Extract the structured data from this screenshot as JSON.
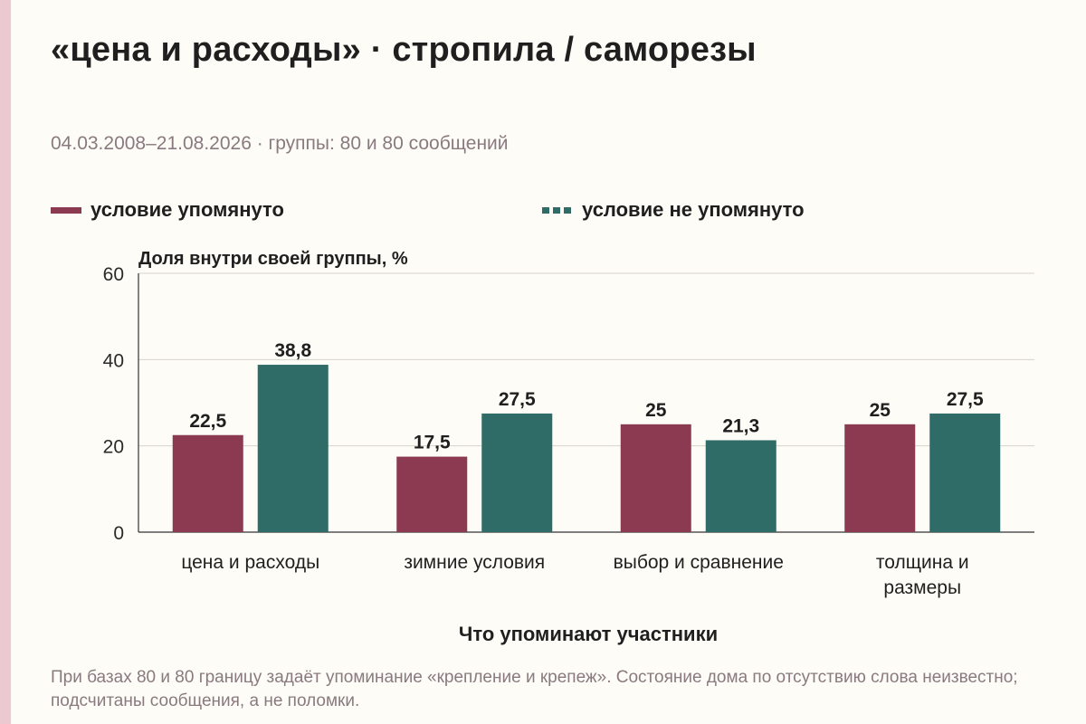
{
  "header": {
    "title": "«цена и расходы» · стропила / саморезы",
    "subtitle": "04.03.2008–21.08.2026 · группы: 80 и 80 сообщений"
  },
  "footnote": "При базах 80 и 80 границу задаёт упоминание «крепление и крепеж». Состояние дома по отсутствию слова неизвестно; подсчитаны сообщения, а не поломки.",
  "chart_data": {
    "type": "bar",
    "ylabel": "Доля внутри своей группы, %",
    "xlabel": "Что упоминают участники",
    "ylim": [
      0,
      60
    ],
    "yticks": [
      0,
      20,
      40,
      60
    ],
    "grid": true,
    "legend_position": "top",
    "categories": [
      [
        "цена и расходы"
      ],
      [
        "зимние условия"
      ],
      [
        "выбор и сравнение"
      ],
      [
        "толщина и",
        "размеры"
      ]
    ],
    "series": [
      {
        "name": "условие упомянуто",
        "color": "#8b3a52",
        "values": [
          22.5,
          17.5,
          25,
          25
        ],
        "labels": [
          "22,5",
          "17,5",
          "25",
          "25"
        ]
      },
      {
        "name": "условие не упомянуто",
        "color": "#2f6b67",
        "values": [
          38.8,
          27.5,
          21.3,
          27.5
        ],
        "labels": [
          "38,8",
          "27,5",
          "21,3",
          "27,5"
        ]
      }
    ]
  }
}
